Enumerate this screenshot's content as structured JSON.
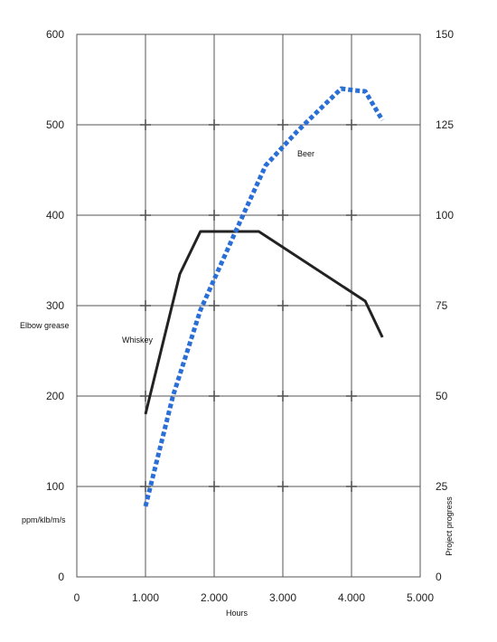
{
  "chart_data": {
    "type": "line",
    "xlabel": "Hours",
    "ylabel": "Elbow grease",
    "ylabel_units": "ppm/klb/m/s",
    "y2label": "Project progress",
    "xlim": [
      0,
      5
    ],
    "ylim": [
      0,
      600
    ],
    "y2lim": [
      0,
      150
    ],
    "x_ticks": [
      "0",
      "1.000",
      "2.000",
      "3.000",
      "4.000",
      "5.000"
    ],
    "y_ticks": [
      "0",
      "100",
      "200",
      "300",
      "400",
      "500",
      "600"
    ],
    "y2_ticks": [
      "0",
      "25",
      "50",
      "75",
      "100",
      "125",
      "150"
    ],
    "grid": true,
    "series": [
      {
        "name": "Whiskey",
        "axis": "left",
        "style": "solid",
        "color": "#222222",
        "x": [
          1.0,
          1.5,
          1.8,
          2.65,
          4.2,
          4.45
        ],
        "y": [
          180,
          335,
          382,
          382,
          305,
          265
        ]
      },
      {
        "name": "Beer",
        "axis": "left",
        "style": "dotted",
        "color": "#2a6fd6",
        "x": [
          1.0,
          1.4,
          1.8,
          2.3,
          2.75,
          3.2,
          3.55,
          3.85,
          4.05,
          4.2,
          4.45
        ],
        "y": [
          78,
          200,
          295,
          380,
          455,
          492,
          518,
          540,
          538,
          537,
          505
        ]
      }
    ]
  }
}
